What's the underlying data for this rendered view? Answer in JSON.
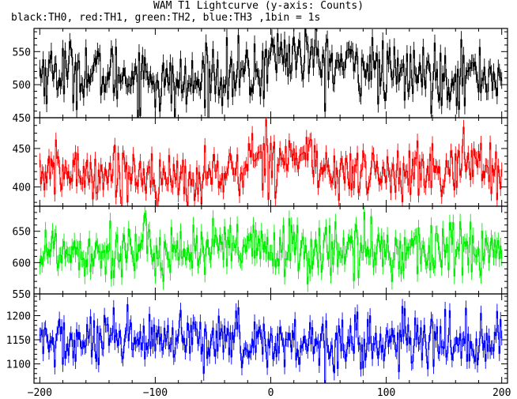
{
  "title": "WAM T1 Lightcurve (y-axis: Counts)",
  "subtitle": "black:TH0, red:TH1, green:TH2, blue:TH3 ,1bin = 1s",
  "chart_data": {
    "type": "line",
    "xlim": [
      -205,
      205
    ],
    "xticks": [
      -200,
      -100,
      0,
      100,
      200
    ],
    "bin_seconds": 1,
    "panels": [
      {
        "name": "TH0",
        "color": "#000000",
        "ylim": [
          450,
          585
        ],
        "yticks": [
          450,
          500,
          550
        ],
        "mean": 515,
        "sigma": 23,
        "x_start": -200,
        "x_end": 200,
        "x_step": 1,
        "features": [
          {
            "x_from": -200,
            "x_to": -160,
            "level": 520
          },
          {
            "x_from": -100,
            "x_to": -60,
            "level": 500
          },
          {
            "x_from": -5,
            "x_to": 40,
            "level": 545
          },
          {
            "x_from": 40,
            "x_to": 90,
            "level": 530
          }
        ]
      },
      {
        "name": "TH1",
        "color": "#ff0000",
        "ylim": [
          375,
          490
        ],
        "yticks": [
          400,
          450
        ],
        "mean": 418,
        "sigma": 17,
        "x_start": -200,
        "x_end": 200,
        "x_step": 1,
        "features": [
          {
            "x_from": -100,
            "x_to": -60,
            "level": 408
          },
          {
            "x_from": -20,
            "x_to": 40,
            "level": 440
          },
          {
            "x_from": 160,
            "x_to": 190,
            "level": 432
          }
        ]
      },
      {
        "name": "TH2",
        "color": "#00ee00",
        "ylim": [
          550,
          690
        ],
        "yticks": [
          550,
          600,
          650
        ],
        "mean": 620,
        "sigma": 23,
        "x_start": -200,
        "x_end": 200,
        "x_step": 1,
        "features": []
      },
      {
        "name": "TH3",
        "color": "#0000ff",
        "ylim": [
          1060,
          1245
        ],
        "yticks": [
          1100,
          1150,
          1200
        ],
        "mean": 1145,
        "sigma": 28,
        "x_start": -200,
        "x_end": 200,
        "x_step": 1,
        "features": [
          {
            "x_from": -45,
            "x_to": -30,
            "level": 1165
          }
        ]
      }
    ]
  }
}
